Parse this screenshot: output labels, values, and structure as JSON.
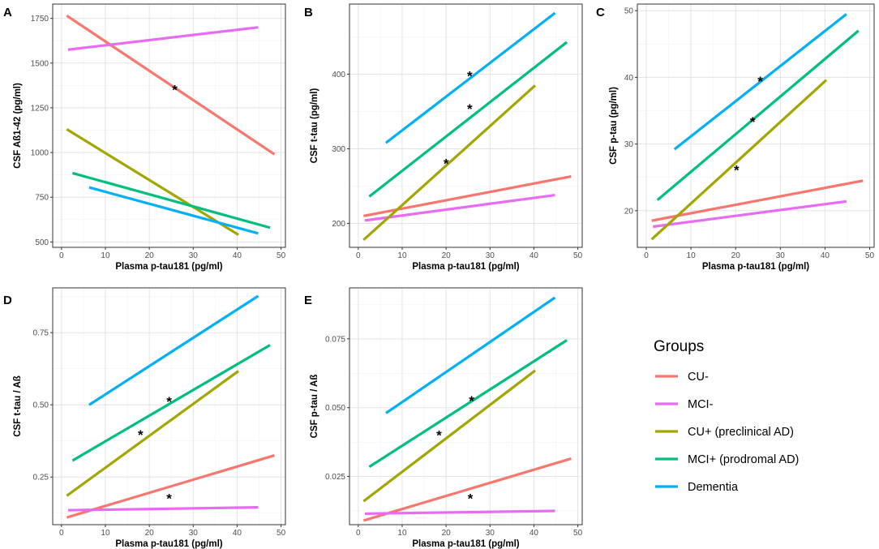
{
  "colors": {
    "CU-": "#F8766D",
    "MCI-": "#E76BF3",
    "CU+ (preclinical AD)": "#A3A500",
    "MCI+ (prodromal AD)": "#00BF7D",
    "Dementia": "#00B0F6"
  },
  "legend": {
    "title": "Groups",
    "entries": [
      "CU-",
      "MCI-",
      "CU+ (preclinical AD)",
      "MCI+ (prodromal AD)",
      "Dementia"
    ]
  },
  "chart_data": [
    {
      "panel": "A",
      "type": "line",
      "xlabel": "Plasma p-tau181 (pg/ml)",
      "ylabel": "CSF Aß1-42 (pg/ml)",
      "xlim": [
        -2,
        51
      ],
      "ylim": [
        470,
        1830
      ],
      "xticks": [
        0,
        10,
        20,
        30,
        40,
        50
      ],
      "yticks": [
        500,
        750,
        1000,
        1250,
        1500,
        1750
      ],
      "ytick_labels": [
        "500",
        "750",
        "1000",
        "1250",
        "1500",
        "1750"
      ],
      "series": [
        {
          "name": "CU-",
          "x": [
            1.2,
            48.5
          ],
          "y": [
            1765,
            990
          ]
        },
        {
          "name": "MCI-",
          "x": [
            1.5,
            44.8
          ],
          "y": [
            1575,
            1700
          ]
        },
        {
          "name": "CU+ (preclinical AD)",
          "x": [
            1.2,
            40.3
          ],
          "y": [
            1130,
            540
          ]
        },
        {
          "name": "MCI+ (prodromal AD)",
          "x": [
            2.5,
            47.5
          ],
          "y": [
            885,
            580
          ]
        },
        {
          "name": "Dementia",
          "x": [
            6.3,
            44.8
          ],
          "y": [
            805,
            548
          ]
        }
      ],
      "annotations": [
        {
          "text": "*",
          "x": 25.8,
          "y": 1365
        }
      ]
    },
    {
      "panel": "B",
      "type": "line",
      "xlabel": "Plasma p-tau181 (pg/ml)",
      "ylabel": "CSF t-tau (pg/ml)",
      "xlim": [
        -2,
        51
      ],
      "ylim": [
        168,
        494
      ],
      "xticks": [
        0,
        10,
        20,
        30,
        40,
        50
      ],
      "yticks": [
        200,
        300,
        400
      ],
      "ytick_labels": [
        "200",
        "300",
        "400"
      ],
      "series": [
        {
          "name": "CU-",
          "x": [
            1.2,
            48.5
          ],
          "y": [
            210,
            263
          ]
        },
        {
          "name": "MCI-",
          "x": [
            1.5,
            44.8
          ],
          "y": [
            204,
            238
          ]
        },
        {
          "name": "CU+ (preclinical AD)",
          "x": [
            1.2,
            40.3
          ],
          "y": [
            178,
            385
          ]
        },
        {
          "name": "MCI+ (prodromal AD)",
          "x": [
            2.5,
            47.5
          ],
          "y": [
            236,
            443
          ]
        },
        {
          "name": "Dementia",
          "x": [
            6.3,
            44.8
          ],
          "y": [
            308,
            482
          ]
        }
      ],
      "annotations": [
        {
          "text": "*",
          "x": 25.4,
          "y": 401
        },
        {
          "text": "*",
          "x": 25.4,
          "y": 357
        },
        {
          "text": "*",
          "x": 20.0,
          "y": 284
        }
      ]
    },
    {
      "panel": "C",
      "type": "line",
      "xlabel": "Plasma p-tau181 (pg/ml)",
      "ylabel": "CSF p-tau (pg/ml)",
      "xlim": [
        -2,
        51
      ],
      "ylim": [
        14.5,
        51
      ],
      "xticks": [
        0,
        10,
        20,
        30,
        40,
        50
      ],
      "yticks": [
        20,
        30,
        40,
        50
      ],
      "ytick_labels": [
        "20",
        "30",
        "40",
        "50"
      ],
      "series": [
        {
          "name": "CU-",
          "x": [
            1.2,
            48.5
          ],
          "y": [
            18.5,
            24.5
          ]
        },
        {
          "name": "MCI-",
          "x": [
            1.5,
            44.8
          ],
          "y": [
            17.6,
            21.4
          ]
        },
        {
          "name": "CU+ (preclinical AD)",
          "x": [
            1.2,
            40.3
          ],
          "y": [
            15.7,
            39.6
          ]
        },
        {
          "name": "MCI+ (prodromal AD)",
          "x": [
            2.5,
            47.5
          ],
          "y": [
            21.6,
            47.0
          ]
        },
        {
          "name": "Dementia",
          "x": [
            6.3,
            44.8
          ],
          "y": [
            29.2,
            49.5
          ]
        }
      ],
      "annotations": [
        {
          "text": "*",
          "x": 25.5,
          "y": 39.8
        },
        {
          "text": "*",
          "x": 23.8,
          "y": 33.7
        },
        {
          "text": "*",
          "x": 20.2,
          "y": 26.5
        }
      ]
    },
    {
      "panel": "D",
      "type": "line",
      "xlabel": "Plasma p-tau181 (pg/ml)",
      "ylabel": "CSF t-tau / Aß",
      "xlim": [
        -2,
        51
      ],
      "ylim": [
        0.085,
        0.905
      ],
      "xticks": [
        0,
        10,
        20,
        30,
        40,
        50
      ],
      "yticks": [
        0.25,
        0.5,
        0.75
      ],
      "ytick_labels": [
        "0.25",
        "0.50",
        "0.75"
      ],
      "series": [
        {
          "name": "CU-",
          "x": [
            1.2,
            48.5
          ],
          "y": [
            0.11,
            0.325
          ]
        },
        {
          "name": "MCI-",
          "x": [
            1.5,
            44.8
          ],
          "y": [
            0.135,
            0.145
          ]
        },
        {
          "name": "CU+ (preclinical AD)",
          "x": [
            1.2,
            40.3
          ],
          "y": [
            0.185,
            0.617
          ]
        },
        {
          "name": "MCI+ (prodromal AD)",
          "x": [
            2.5,
            47.5
          ],
          "y": [
            0.307,
            0.707
          ]
        },
        {
          "name": "Dementia",
          "x": [
            6.3,
            44.8
          ],
          "y": [
            0.5,
            0.877
          ]
        }
      ],
      "annotations": [
        {
          "text": "*",
          "x": 24.5,
          "y": 0.52
        },
        {
          "text": "*",
          "x": 18.0,
          "y": 0.405
        },
        {
          "text": "*",
          "x": 24.5,
          "y": 0.185
        }
      ]
    },
    {
      "panel": "E",
      "type": "line",
      "xlabel": "Plasma p-tau181 (pg/ml)",
      "ylabel": "CSF p-tau / Aß",
      "xlim": [
        -2,
        51
      ],
      "ylim": [
        0.0075,
        0.0935
      ],
      "xticks": [
        0,
        10,
        20,
        30,
        40,
        50
      ],
      "yticks": [
        0.025,
        0.05,
        0.075
      ],
      "ytick_labels": [
        "0.025",
        "0.050",
        "0.075"
      ],
      "series": [
        {
          "name": "CU-",
          "x": [
            1.2,
            48.5
          ],
          "y": [
            0.009,
            0.0315
          ]
        },
        {
          "name": "MCI-",
          "x": [
            1.5,
            44.8
          ],
          "y": [
            0.0115,
            0.0125
          ]
        },
        {
          "name": "CU+ (preclinical AD)",
          "x": [
            1.2,
            40.3
          ],
          "y": [
            0.016,
            0.0635
          ]
        },
        {
          "name": "MCI+ (prodromal AD)",
          "x": [
            2.5,
            47.5
          ],
          "y": [
            0.0285,
            0.0745
          ]
        },
        {
          "name": "Dementia",
          "x": [
            6.3,
            44.8
          ],
          "y": [
            0.048,
            0.09
          ]
        }
      ],
      "annotations": [
        {
          "text": "*",
          "x": 25.8,
          "y": 0.0535
        },
        {
          "text": "*",
          "x": 18.4,
          "y": 0.041
        },
        {
          "text": "*",
          "x": 25.5,
          "y": 0.018
        }
      ]
    }
  ]
}
